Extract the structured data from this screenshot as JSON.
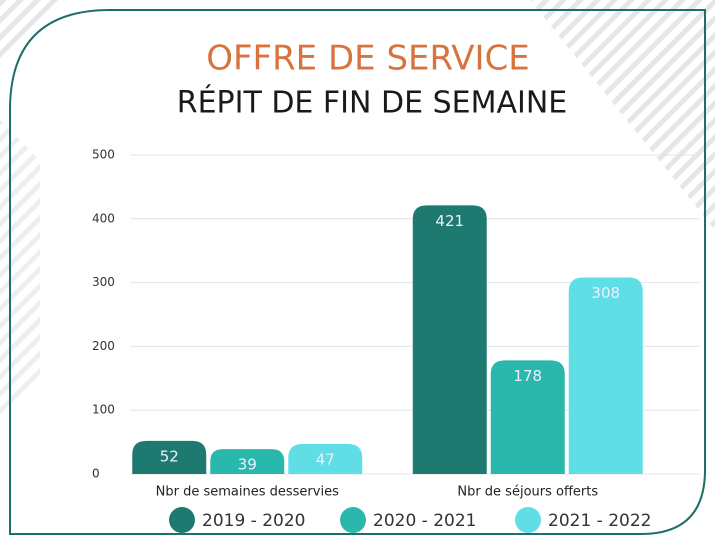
{
  "chart_data": {
    "type": "bar",
    "title": "OFFRE DE SERVICE",
    "subtitle": "RÉPIT DE FIN DE SEMAINE",
    "categories": [
      "Nbr de semaines desservies",
      "Nbr de séjours offerts"
    ],
    "series": [
      {
        "name": "2019 - 2020",
        "color": "#1e7a70",
        "values": [
          52,
          421
        ]
      },
      {
        "name": "2020 - 2021",
        "color": "#2bb8ac",
        "values": [
          39,
          178
        ]
      },
      {
        "name": "2021 - 2022",
        "color": "#5fdfe5",
        "values": [
          47,
          308
        ]
      }
    ],
    "ylim": [
      0,
      500
    ],
    "yticks": [
      0,
      100,
      200,
      300,
      400,
      500
    ],
    "grid": true,
    "legend": "bottom"
  }
}
